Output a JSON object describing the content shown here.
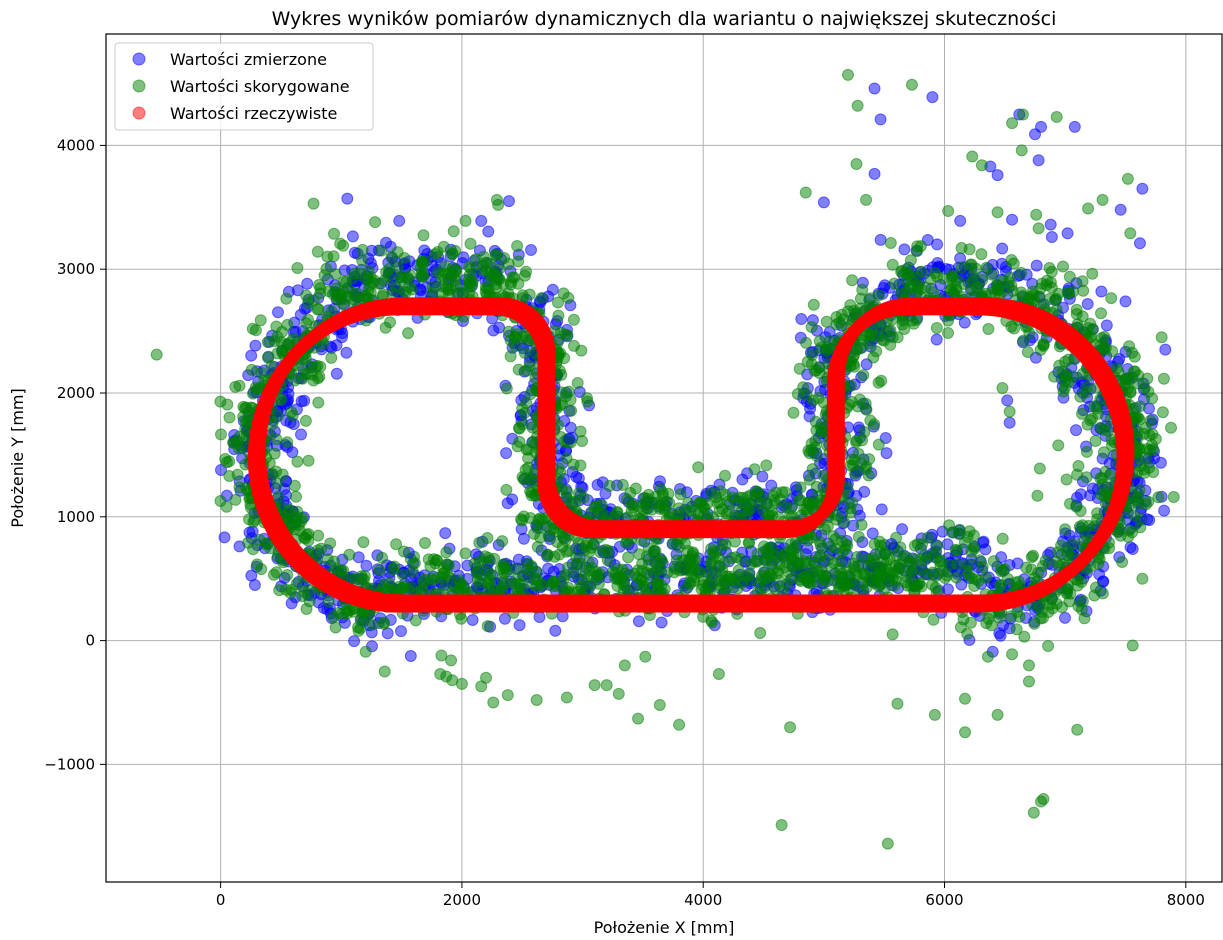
{
  "chart_data": {
    "type": "scatter",
    "title": "Wykres wyników pomiarów dynamicznych dla wariantu o największej skuteczności",
    "xlabel": "Położenie X [mm]",
    "ylabel": "Położenie Y [mm]",
    "xlim": [
      -950,
      8300
    ],
    "ylim": [
      -1950,
      4900
    ],
    "x_ticks": [
      0,
      2000,
      4000,
      6000,
      8000
    ],
    "y_ticks": [
      -1000,
      0,
      1000,
      2000,
      3000,
      4000
    ],
    "x_tick_labels": [
      "0",
      "2000",
      "4000",
      "6000",
      "8000"
    ],
    "y_tick_labels": [
      "−1000",
      "0",
      "1000",
      "2000",
      "3000",
      "4000"
    ],
    "grid": true,
    "legend_position": "upper-left",
    "series": [
      {
        "name": "Wartości zmierzone",
        "color": "#0000ff",
        "alpha": 0.5,
        "description_path": "dense blue points around the track outline",
        "outliers": [
          [
            1050,
            3570
          ],
          [
            1480,
            3390
          ],
          [
            2390,
            3550
          ],
          [
            2160,
            3390
          ],
          [
            5000,
            3540
          ],
          [
            5420,
            4460
          ],
          [
            5470,
            4210
          ],
          [
            5420,
            3770
          ],
          [
            5900,
            4390
          ],
          [
            6130,
            3390
          ],
          [
            6380,
            3830
          ],
          [
            6440,
            3760
          ],
          [
            6560,
            3400
          ],
          [
            6780,
            3880
          ],
          [
            6750,
            4090
          ],
          [
            6800,
            4150
          ],
          [
            6880,
            3360
          ],
          [
            6890,
            3260
          ],
          [
            7020,
            3290
          ],
          [
            7080,
            4150
          ],
          [
            7140,
            2370
          ],
          [
            7300,
            2820
          ],
          [
            7460,
            3480
          ],
          [
            7500,
            2740
          ],
          [
            7620,
            3210
          ],
          [
            7640,
            3650
          ],
          [
            7830,
            2350
          ],
          [
            7820,
            1050
          ],
          [
            6520,
            1940
          ],
          [
            6540,
            1760
          ],
          [
            7090,
            1700
          ],
          [
            5480,
            1060
          ],
          [
            5560,
            780
          ],
          [
            2890,
            1630
          ],
          [
            1560,
            710
          ],
          [
            6620,
            4250
          ],
          [
            7560,
            740
          ],
          [
            7680,
            980
          ]
        ]
      },
      {
        "name": "Wartości skorygowane",
        "color": "#008000",
        "alpha": 0.5,
        "description_path": "dense green points along the track outline",
        "outliers": [
          [
            -530,
            2310
          ],
          [
            770,
            3530
          ],
          [
            1280,
            3380
          ],
          [
            2030,
            3390
          ],
          [
            2290,
            3560
          ],
          [
            2300,
            3520
          ],
          [
            4850,
            3620
          ],
          [
            5200,
            4570
          ],
          [
            5280,
            4320
          ],
          [
            5270,
            3850
          ],
          [
            5350,
            3560
          ],
          [
            5730,
            4490
          ],
          [
            6030,
            3470
          ],
          [
            6230,
            3910
          ],
          [
            6310,
            3840
          ],
          [
            6440,
            3460
          ],
          [
            6560,
            4180
          ],
          [
            6640,
            3960
          ],
          [
            6650,
            4250
          ],
          [
            6870,
            3010
          ],
          [
            6930,
            4230
          ],
          [
            6780,
            3330
          ],
          [
            6760,
            3440
          ],
          [
            7190,
            3490
          ],
          [
            7310,
            3560
          ],
          [
            7520,
            3730
          ],
          [
            7540,
            3290
          ],
          [
            7800,
            2450
          ],
          [
            7690,
            2010
          ],
          [
            7720,
            1580
          ],
          [
            7900,
            1160
          ],
          [
            7670,
            1100
          ],
          [
            7640,
            500
          ],
          [
            7560,
            -40
          ],
          [
            7160,
            180
          ],
          [
            7100,
            -720
          ],
          [
            6820,
            -1280
          ],
          [
            6740,
            -1390
          ],
          [
            6800,
            -1300
          ],
          [
            6700,
            -200
          ],
          [
            6700,
            -330
          ],
          [
            6560,
            -110
          ],
          [
            6440,
            -600
          ],
          [
            6360,
            -130
          ],
          [
            6170,
            -470
          ],
          [
            6170,
            -740
          ],
          [
            5920,
            -600
          ],
          [
            5610,
            -510
          ],
          [
            5530,
            -1640
          ],
          [
            4720,
            -700
          ],
          [
            4650,
            -1490
          ],
          [
            4130,
            -270
          ],
          [
            3800,
            -680
          ],
          [
            3640,
            -520
          ],
          [
            3520,
            -130
          ],
          [
            3460,
            -630
          ],
          [
            3350,
            -200
          ],
          [
            3300,
            -430
          ],
          [
            3200,
            -360
          ],
          [
            3100,
            -360
          ],
          [
            2870,
            -460
          ],
          [
            2620,
            -480
          ],
          [
            2380,
            -440
          ],
          [
            2260,
            -500
          ],
          [
            2200,
            -300
          ],
          [
            2160,
            -370
          ],
          [
            1870,
            -290
          ],
          [
            1820,
            -270
          ],
          [
            1920,
            -320
          ],
          [
            2000,
            -350
          ],
          [
            1910,
            -160
          ],
          [
            1830,
            -120
          ],
          [
            1360,
            -250
          ],
          [
            1520,
            720
          ],
          [
            5570,
            50
          ],
          [
            6480,
            2040
          ],
          [
            6540,
            1850
          ],
          [
            6790,
            1390
          ],
          [
            6770,
            1170
          ],
          [
            7110,
            1410
          ]
        ]
      },
      {
        "name": "Wartości rzeczywiste",
        "color": "#ff0000",
        "alpha": 0.5,
        "description_path": "thick red reference track"
      }
    ]
  }
}
